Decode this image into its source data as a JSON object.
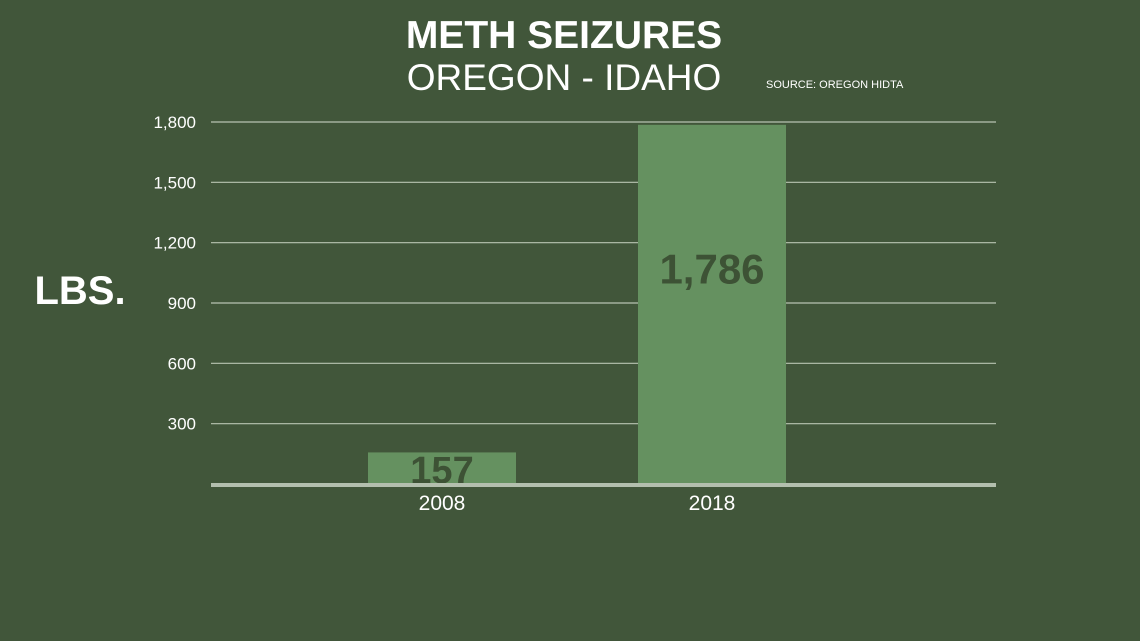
{
  "chart_data": {
    "type": "bar",
    "title": "METH SEIZURES",
    "subtitle": "OREGON - IDAHO",
    "source": "SOURCE: OREGON HIDTA",
    "ylabel": "LBS.",
    "categories": [
      "2008",
      "2018"
    ],
    "values": [
      157,
      1786
    ],
    "value_labels": [
      "157",
      "1,786"
    ],
    "yticks": [
      300,
      600,
      900,
      1200,
      1500,
      1800
    ],
    "ytick_labels": [
      "300",
      "600",
      "900",
      "1,200",
      "1,500",
      "1,800"
    ],
    "ylim": [
      0,
      1800
    ],
    "grid": true
  },
  "colors": {
    "background": "#41563a",
    "bar": "#659160",
    "gridline": "#b8c4b2",
    "baseline": "#b3bfae",
    "data_label": "#3d5235",
    "text": "#ffffff"
  }
}
